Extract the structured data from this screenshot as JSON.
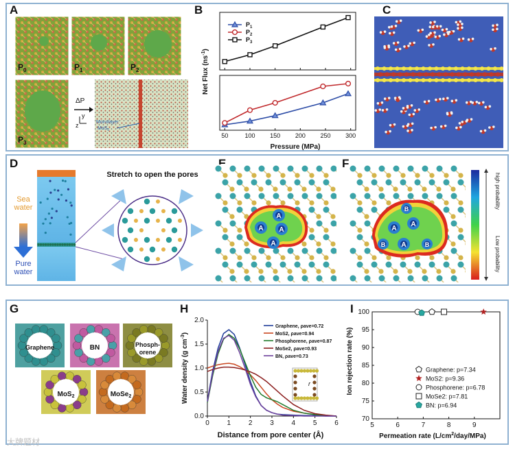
{
  "panels": {
    "A": {
      "label": "A",
      "tiles": [
        "P",
        "P",
        "P",
        "P"
      ],
      "tile_subs": [
        "0",
        "1",
        "2",
        "3"
      ],
      "delta_p": "ΔP",
      "axis_y": "y",
      "axis_z": "z",
      "mono_line1": "Monolayer",
      "mono_line2": "MoS",
      "mono_sub": "2"
    },
    "B": {
      "label": "B"
    },
    "C": {
      "label": "C"
    },
    "D": {
      "label": "D",
      "stretch": "Stretch to open the pores",
      "sea_line1": "Sea",
      "sea_line2": "water",
      "pure_line1": "Pure",
      "pure_line2": "water"
    },
    "E": {
      "label": "E",
      "sites": [
        "A",
        "A",
        "A",
        "A"
      ]
    },
    "F": {
      "label": "F",
      "sites": [
        "B",
        "A",
        "A",
        "B",
        "A",
        "B"
      ]
    },
    "colorbar": {
      "high": "high probability",
      "low": "Low probability"
    },
    "G": {
      "label": "G",
      "materials": [
        "Graphene",
        "BN",
        "Phosph-",
        "orene",
        "MoS",
        "2",
        "MoSe",
        "2"
      ]
    },
    "H": {
      "label": "H",
      "inset_label": "r"
    },
    "I": {
      "label": "I"
    }
  },
  "watermark": "大牌题材",
  "chart_data": [
    {
      "id": "B-top",
      "type": "line",
      "x": [
        50,
        100,
        150,
        245,
        295
      ],
      "series": [
        {
          "name": "P3",
          "values": [
            80,
            145,
            230,
            410,
            500
          ],
          "color": "#111111",
          "marker": "square"
        }
      ],
      "ylim": [
        0,
        550
      ]
    },
    {
      "id": "B-bottom",
      "type": "line",
      "x": [
        50,
        100,
        150,
        245,
        295
      ],
      "series": [
        {
          "name": "P1",
          "values": [
            3,
            5,
            8,
            15,
            20
          ],
          "color": "#2c4ca6",
          "marker": "triangle"
        },
        {
          "name": "P2",
          "values": [
            4,
            11,
            15,
            24,
            25.5
          ],
          "color": "#c0282b",
          "marker": "circle"
        }
      ],
      "ylim": [
        0,
        30
      ],
      "xlim": [
        40,
        310
      ],
      "xlabel": "Pressure (MPa)",
      "xticks": [
        "50",
        "100",
        "150",
        "200",
        "250",
        "300"
      ],
      "ylabel": "Net Flux (ns",
      "ylabel_sup": "-1",
      "ylabel_end": ")",
      "legend": [
        {
          "base": "P",
          "sub": "1"
        },
        {
          "base": "P",
          "sub": "2"
        },
        {
          "base": "P",
          "sub": "3"
        }
      ]
    },
    {
      "id": "H",
      "type": "line",
      "xlabel": "Distance from pore center (Å)",
      "ylabel": "Water density (g cm",
      "ylabel_sup": "-3",
      "ylabel_end": ")",
      "xlim": [
        0,
        6
      ],
      "ylim": [
        0,
        2.0
      ],
      "xticks": [
        "0",
        "1",
        "2",
        "3",
        "4",
        "5",
        "6"
      ],
      "yticks": [
        "0.0",
        "0.5",
        "1.0",
        "1.5",
        "2.0"
      ],
      "series": [
        {
          "name": "Graphene, ρave=0.72",
          "color": "#1f3d99",
          "x": [
            0,
            0.25,
            0.5,
            0.75,
            1,
            1.25,
            1.5,
            1.75,
            2,
            2.25,
            2.5,
            2.75,
            3,
            3.25,
            3.5,
            4,
            4.5,
            5,
            5.5,
            6
          ],
          "values": [
            0.32,
            0.95,
            1.42,
            1.72,
            1.8,
            1.7,
            1.42,
            1.08,
            0.72,
            0.42,
            0.22,
            0.12,
            0.07,
            0.04,
            0.03,
            0.02,
            0.01,
            0.01,
            0.0,
            0.0
          ]
        },
        {
          "name": "MoS2, ρave=0.94",
          "color": "#c9461f",
          "x": [
            0,
            0.25,
            0.5,
            0.75,
            1,
            1.25,
            1.5,
            1.75,
            2,
            2.25,
            2.5,
            2.75,
            3,
            3.25,
            3.5,
            4,
            4.5,
            5,
            5.5,
            6
          ],
          "values": [
            1.0,
            1.04,
            1.07,
            1.09,
            1.1,
            1.08,
            1.03,
            0.96,
            0.86,
            0.74,
            0.6,
            0.46,
            0.34,
            0.25,
            0.18,
            0.1,
            0.06,
            0.03,
            0.01,
            0.0
          ]
        },
        {
          "name": "Phosphorene, ρave=0.87",
          "color": "#1f7a2a",
          "x": [
            0,
            0.25,
            0.5,
            0.75,
            1,
            1.25,
            1.5,
            1.75,
            2,
            2.25,
            2.5,
            2.75,
            3,
            3.25,
            3.5,
            4,
            4.5,
            5,
            5.5,
            6
          ],
          "values": [
            0.28,
            0.85,
            1.3,
            1.6,
            1.7,
            1.62,
            1.4,
            1.12,
            0.84,
            0.6,
            0.45,
            0.38,
            0.34,
            0.3,
            0.24,
            0.12,
            0.06,
            0.03,
            0.01,
            0.0
          ]
        },
        {
          "name": "MoSe2, ρave=0.93",
          "color": "#8a1c1c",
          "x": [
            0,
            0.25,
            0.5,
            0.75,
            1,
            1.25,
            1.5,
            1.75,
            2,
            2.25,
            2.5,
            2.75,
            3,
            3.25,
            3.5,
            4,
            4.5,
            5,
            5.5,
            6
          ],
          "values": [
            0.93,
            0.97,
            1.0,
            1.02,
            1.02,
            1.01,
            0.99,
            0.96,
            0.92,
            0.87,
            0.8,
            0.72,
            0.62,
            0.52,
            0.42,
            0.24,
            0.12,
            0.05,
            0.02,
            0.0
          ]
        },
        {
          "name": "BN, ρave=0.73",
          "color": "#6a3d9a",
          "x": [
            0,
            0.25,
            0.5,
            0.75,
            1,
            1.25,
            1.5,
            1.75,
            2,
            2.25,
            2.5,
            2.75,
            3,
            3.25,
            3.5,
            4,
            4.5,
            5,
            5.5,
            6
          ],
          "values": [
            0.3,
            0.9,
            1.35,
            1.62,
            1.68,
            1.58,
            1.32,
            1.0,
            0.66,
            0.4,
            0.22,
            0.12,
            0.07,
            0.04,
            0.02,
            0.01,
            0.0,
            0.0,
            0.0,
            0.0
          ]
        }
      ]
    },
    {
      "id": "I",
      "type": "scatter",
      "xlabel": "Permeation rate (L/cm",
      "xlabel_sup": "2",
      "xlabel_end": "/day/MPa)",
      "ylabel": "Ion rejection rate (%)",
      "xlim": [
        5,
        10
      ],
      "ylim": [
        70,
        100
      ],
      "xticks": [
        "5",
        "6",
        "7",
        "8",
        "9"
      ],
      "yticks": [
        "100",
        "95",
        "90",
        "85",
        "80",
        "75",
        "70"
      ],
      "points": [
        {
          "name": "Graphene: p=7.34",
          "x": 7.34,
          "y": 100,
          "marker": "pentagon",
          "color": "#222222"
        },
        {
          "name": "MoS2: p=9.36",
          "x": 9.36,
          "y": 100,
          "marker": "star",
          "color": "#b22222"
        },
        {
          "name": "Phosphorene: p=6.78",
          "x": 6.78,
          "y": 100,
          "marker": "circle",
          "color": "#222222"
        },
        {
          "name": "MoSe2: p=7.81",
          "x": 7.81,
          "y": 100,
          "marker": "square",
          "color": "#222222"
        },
        {
          "name": "BN: p=6.94",
          "x": 6.94,
          "y": 99.7,
          "marker": "pentagon-filled",
          "color": "#28a7a0"
        }
      ]
    }
  ]
}
